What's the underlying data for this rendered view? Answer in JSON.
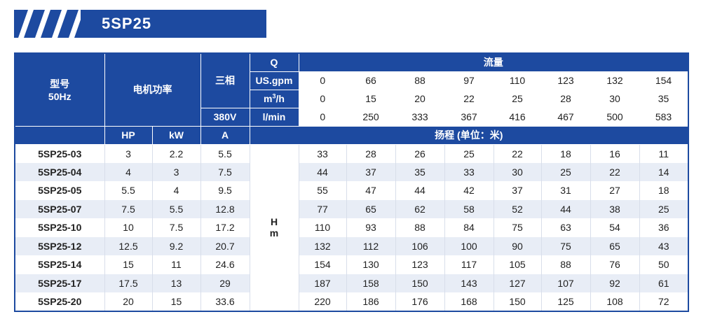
{
  "banner": {
    "title": "5SP25"
  },
  "colors": {
    "primary": "#1d4aa0",
    "row_alt": "#e8edf6"
  },
  "header": {
    "model_label": "型号",
    "freq_label": "50Hz",
    "motor_power": "电机功率",
    "phase": "三相",
    "voltage": "380V",
    "q_label": "Q",
    "flow_label": "流量",
    "unit_usgpm": "US.gpm",
    "unit_m3h_base": "m",
    "unit_m3h_sup": "3",
    "unit_m3h_tail": "/h",
    "unit_lmin": "l/min",
    "col_hp": "HP",
    "col_kw": "kW",
    "col_a": "A",
    "head_label": "扬程 (单位：米)",
    "usgpm": [
      "0",
      "66",
      "88",
      "97",
      "110",
      "123",
      "132",
      "154"
    ],
    "m3h": [
      "0",
      "15",
      "20",
      "22",
      "25",
      "28",
      "30",
      "35"
    ],
    "lmin": [
      "0",
      "250",
      "333",
      "367",
      "416",
      "467",
      "500",
      "583"
    ]
  },
  "hm": {
    "h": "H",
    "m": "m"
  },
  "rows": [
    {
      "model": "5SP25-03",
      "hp": "3",
      "kw": "2.2",
      "a": "5.5",
      "heads": [
        "33",
        "28",
        "26",
        "25",
        "22",
        "18",
        "16",
        "11"
      ]
    },
    {
      "model": "5SP25-04",
      "hp": "4",
      "kw": "3",
      "a": "7.5",
      "heads": [
        "44",
        "37",
        "35",
        "33",
        "30",
        "25",
        "22",
        "14"
      ]
    },
    {
      "model": "5SP25-05",
      "hp": "5.5",
      "kw": "4",
      "a": "9.5",
      "heads": [
        "55",
        "47",
        "44",
        "42",
        "37",
        "31",
        "27",
        "18"
      ]
    },
    {
      "model": "5SP25-07",
      "hp": "7.5",
      "kw": "5.5",
      "a": "12.8",
      "heads": [
        "77",
        "65",
        "62",
        "58",
        "52",
        "44",
        "38",
        "25"
      ]
    },
    {
      "model": "5SP25-10",
      "hp": "10",
      "kw": "7.5",
      "a": "17.2",
      "heads": [
        "110",
        "93",
        "88",
        "84",
        "75",
        "63",
        "54",
        "36"
      ]
    },
    {
      "model": "5SP25-12",
      "hp": "12.5",
      "kw": "9.2",
      "a": "20.7",
      "heads": [
        "132",
        "112",
        "106",
        "100",
        "90",
        "75",
        "65",
        "43"
      ]
    },
    {
      "model": "5SP25-14",
      "hp": "15",
      "kw": "11",
      "a": "24.6",
      "heads": [
        "154",
        "130",
        "123",
        "117",
        "105",
        "88",
        "76",
        "50"
      ]
    },
    {
      "model": "5SP25-17",
      "hp": "17.5",
      "kw": "13",
      "a": "29",
      "heads": [
        "187",
        "158",
        "150",
        "143",
        "127",
        "107",
        "92",
        "61"
      ]
    },
    {
      "model": "5SP25-20",
      "hp": "20",
      "kw": "15",
      "a": "33.6",
      "heads": [
        "220",
        "186",
        "176",
        "168",
        "150",
        "125",
        "108",
        "72"
      ]
    }
  ]
}
